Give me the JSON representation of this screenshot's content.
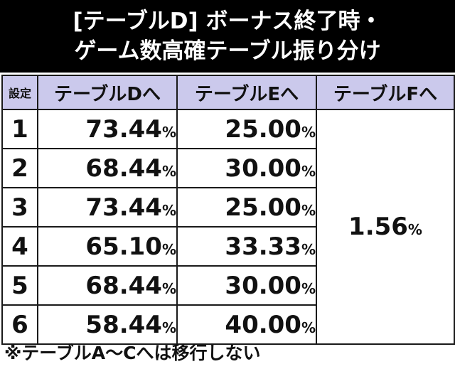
{
  "header": {
    "line1": "[テーブルD] ボーナス終了時・",
    "line2": "ゲーム数高確テーブル振り分け"
  },
  "table": {
    "columns": [
      "設定",
      "テーブルDへ",
      "テーブルEへ",
      "テーブルFへ"
    ],
    "rows": [
      {
        "setting": "1",
        "d": "73.44",
        "e": "25.00"
      },
      {
        "setting": "2",
        "d": "68.44",
        "e": "30.00"
      },
      {
        "setting": "3",
        "d": "73.44",
        "e": "25.00"
      },
      {
        "setting": "4",
        "d": "65.10",
        "e": "33.33"
      },
      {
        "setting": "5",
        "d": "68.44",
        "e": "30.00"
      },
      {
        "setting": "6",
        "d": "58.44",
        "e": "40.00"
      }
    ],
    "f_value": "1.56",
    "unit": "%"
  },
  "footer": {
    "note": "※テーブルA～Cへは移行しない"
  }
}
